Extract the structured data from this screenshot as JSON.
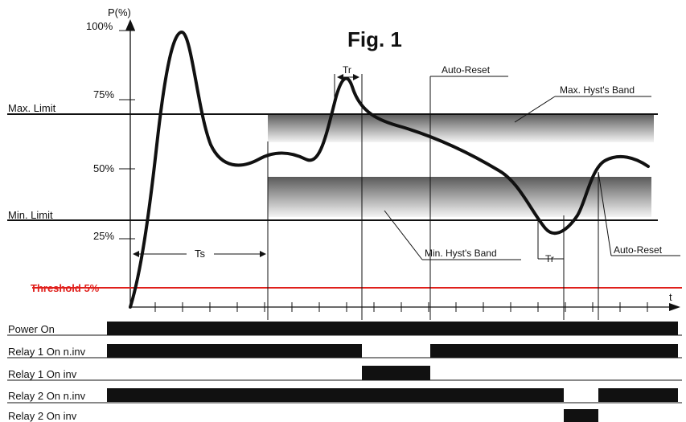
{
  "figure": {
    "title": "Fig. 1",
    "axis_y_label": "P(%)",
    "axis_x_label": "t",
    "ticks": {
      "y100": "100%",
      "y75": "75%",
      "y50": "50%",
      "y25": "25%"
    },
    "lines": {
      "max_limit": "Max.  Limit",
      "min_limit": "Min.  Limit",
      "threshold": "Threshold 5%"
    },
    "annotations": {
      "tr_top": "Tr",
      "tr_bottom": "Tr",
      "ts": "Ts",
      "auto_reset_top": "Auto-Reset",
      "auto_reset_right": "Auto-Reset",
      "max_hyst_band": "Max. Hyst's Band",
      "min_hyst_band": "Min. Hyst's Band"
    },
    "colors": {
      "threshold": "#e0201c",
      "curve": "#111111",
      "band_dark": "#5a5a5a",
      "band_light": "#f2f2f2"
    }
  },
  "timing_rows": [
    {
      "label": "Power  On"
    },
    {
      "label": "Relay 1 On n.inv"
    },
    {
      "label": "Relay 1 On inv"
    },
    {
      "label": "Relay 2 On n.inv"
    },
    {
      "label": "Relay 2 On inv"
    }
  ]
}
